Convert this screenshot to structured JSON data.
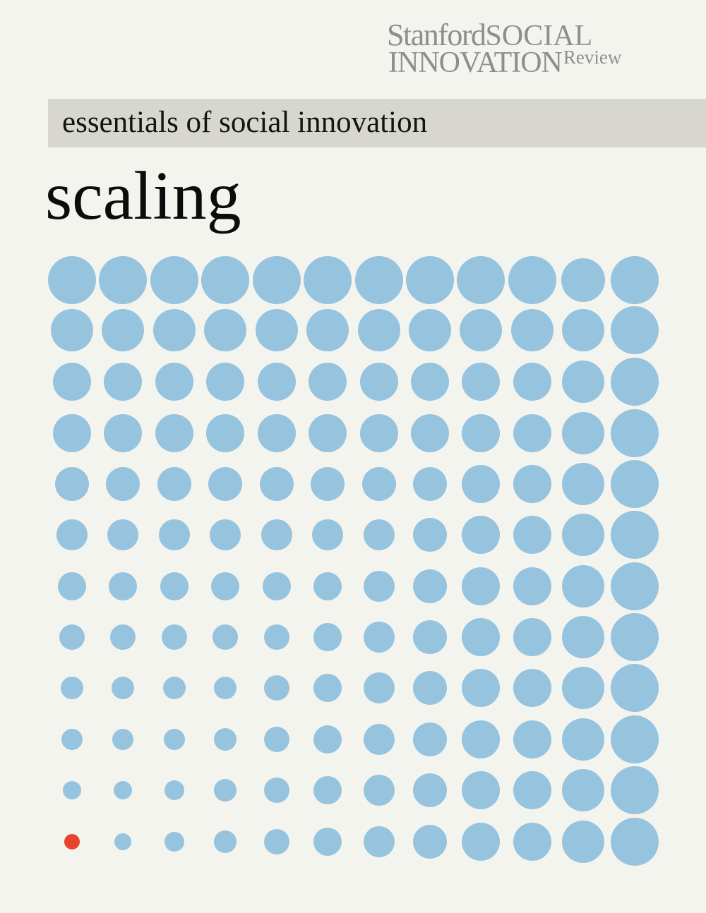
{
  "masthead": {
    "stanford": "Stanford",
    "social": "SOCIAL",
    "innovation": "INNOVATION",
    "review": "Review",
    "color": "#8c8e92"
  },
  "series": {
    "label": "essentials of social innovation",
    "bar_color": "#d7d7cf"
  },
  "cover": {
    "title": "scaling"
  },
  "dot_grid": {
    "rows": 12,
    "cols": 12,
    "dot_color": "#96c3de",
    "highlight_color": "#e8432b",
    "highlight": {
      "row": 12,
      "col": 1
    }
  }
}
